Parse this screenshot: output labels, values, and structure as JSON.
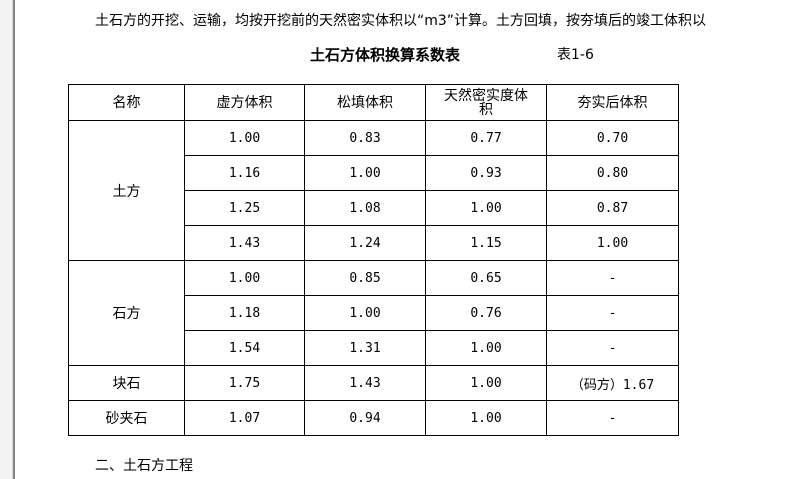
{
  "paragraph": "土石方的开挖、运输，均按开挖前的天然密实体积以“m3”计算。土方回填，按夯填后的竣工体积以",
  "table_title": "土石方体积换算系数表",
  "table_number": "表1-6",
  "headers": [
    "名称",
    "虚方体积",
    "松填体积",
    "天然密实度体积",
    "夯实后体积"
  ],
  "groups": [
    {
      "name": "土方",
      "rows": [
        [
          "1.00",
          "0.83",
          "0.77",
          "0.70"
        ],
        [
          "1.16",
          "1.00",
          "0.93",
          "0.80"
        ],
        [
          "1.25",
          "1.08",
          "1.00",
          "0.87"
        ],
        [
          "1.43",
          "1.24",
          "1.15",
          "1.00"
        ]
      ]
    },
    {
      "name": "石方",
      "rows": [
        [
          "1.00",
          "0.85",
          "0.65",
          "-"
        ],
        [
          "1.18",
          "1.00",
          "0.76",
          "-"
        ],
        [
          "1.54",
          "1.31",
          "1.00",
          "-"
        ]
      ]
    },
    {
      "name": "块石",
      "rows": [
        [
          "1.75",
          "1.43",
          "1.00",
          "（码方）1.67"
        ]
      ]
    },
    {
      "name": "砂夹石",
      "rows": [
        [
          "1.07",
          "0.94",
          "1.00",
          "-"
        ]
      ]
    }
  ],
  "section_heading": "二、土石方工程"
}
